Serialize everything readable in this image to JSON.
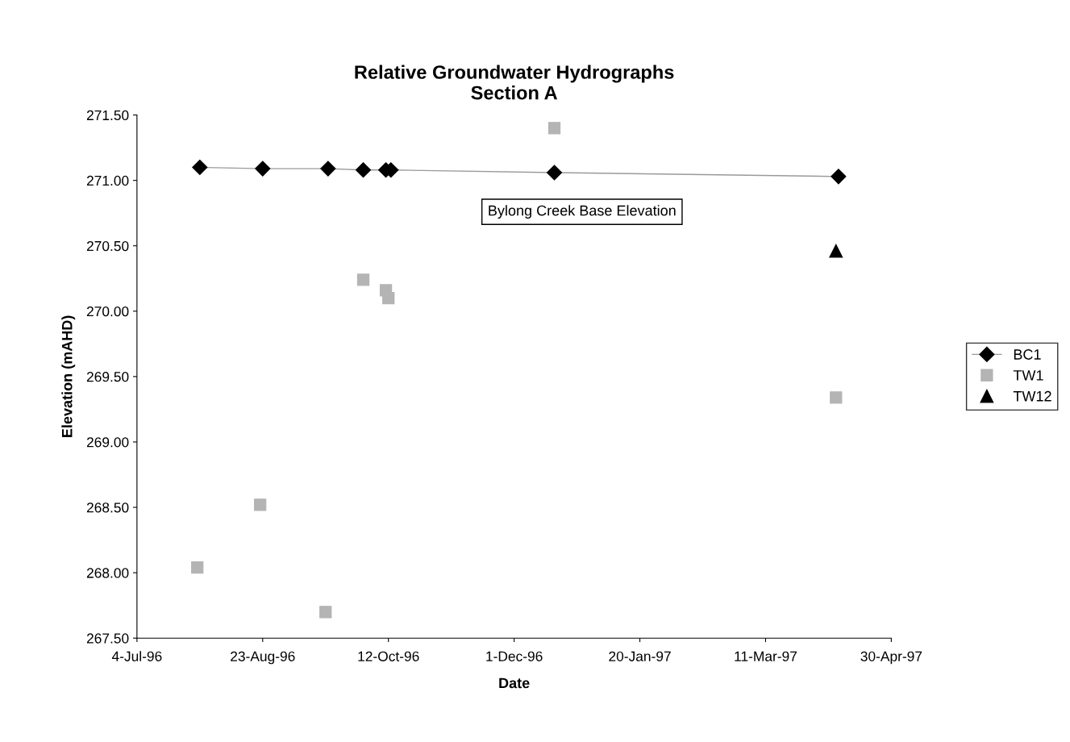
{
  "chart_data": {
    "type": "scatter",
    "title": "Relative Groundwater Hydrographs\nSection A",
    "xlabel": "Date",
    "ylabel": "Elevation (mAHD)",
    "series": [
      {
        "name": "BC1",
        "type": "line",
        "marker": "diamond",
        "color": "#000000",
        "x": [
          "1996-07-29",
          "1996-08-23",
          "1996-09-18",
          "1996-10-02",
          "1996-10-11",
          "1996-10-13",
          "1996-12-17",
          "1997-04-09"
        ],
        "values": [
          271.1,
          271.09,
          271.09,
          271.08,
          271.08,
          271.08,
          271.06,
          271.03
        ]
      },
      {
        "name": "TW1",
        "marker": "square",
        "color": "#b4b4b4",
        "x": [
          "1996-07-28",
          "1996-08-22",
          "1996-09-17",
          "1996-10-02",
          "1996-10-11",
          "1996-10-12",
          "1996-12-17",
          "1997-04-08"
        ],
        "values": [
          268.04,
          268.52,
          267.7,
          270.24,
          270.16,
          270.1,
          271.4,
          269.34
        ]
      },
      {
        "name": "TW12",
        "marker": "triangle",
        "color": "#000000",
        "x": [
          "1997-04-08"
        ],
        "values": [
          270.46
        ]
      }
    ],
    "annotations": [
      "Bylong Creek Base Elevation"
    ],
    "xlim": [
      "1996-07-04",
      "1997-04-30"
    ],
    "xticks": [
      {
        "value": "1996-07-04",
        "label": "4-Jul-96"
      },
      {
        "value": "1996-08-23",
        "label": "23-Aug-96"
      },
      {
        "value": "1996-10-12",
        "label": "12-Oct-96"
      },
      {
        "value": "1996-12-01",
        "label": "1-Dec-96"
      },
      {
        "value": "1997-01-20",
        "label": "20-Jan-97"
      },
      {
        "value": "1997-03-11",
        "label": "11-Mar-97"
      },
      {
        "value": "1997-04-30",
        "label": "30-Apr-97"
      }
    ],
    "ylim": [
      267.5,
      271.5
    ],
    "yticks": [
      {
        "value": 267.5,
        "label": "267.50"
      },
      {
        "value": 268.0,
        "label": "268.00"
      },
      {
        "value": 268.5,
        "label": "268.50"
      },
      {
        "value": 269.0,
        "label": "269.00"
      },
      {
        "value": 269.5,
        "label": "269.50"
      },
      {
        "value": 270.0,
        "label": "270.00"
      },
      {
        "value": 270.5,
        "label": "270.50"
      },
      {
        "value": 271.0,
        "label": "271.00"
      },
      {
        "value": 271.5,
        "label": "271.50"
      }
    ],
    "legend": "right",
    "grid": false
  }
}
